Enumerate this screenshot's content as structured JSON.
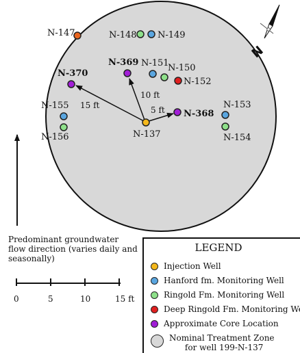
{
  "wells": [
    {
      "id": "N-147",
      "type": "deep_ringold"
    },
    {
      "id": "N-148",
      "type": "ringold"
    },
    {
      "id": "N-149",
      "type": "hanford"
    },
    {
      "id": "N-369",
      "type": "core"
    },
    {
      "id": "N-151",
      "type": "hanford"
    },
    {
      "id": "N-150",
      "type": "ringold"
    },
    {
      "id": "N-152",
      "type": "deep_ringold"
    },
    {
      "id": "N-370",
      "type": "core"
    },
    {
      "id": "N-155",
      "type": "hanford"
    },
    {
      "id": "N-156",
      "type": "ringold"
    },
    {
      "id": "N-137",
      "type": "injection"
    },
    {
      "id": "N-368",
      "type": "core"
    },
    {
      "id": "N-153",
      "type": "hanford"
    },
    {
      "id": "N-154",
      "type": "ringold"
    }
  ],
  "distances": [
    {
      "label": "15 ft",
      "to": "N-370"
    },
    {
      "label": "10 ft",
      "to": "N-369"
    },
    {
      "label": "5 ft",
      "to": "N-368"
    }
  ],
  "colors": {
    "injection": "#f4b81c",
    "hanford": "#5aa6e0",
    "ringold": "#8ee08a",
    "deep_ringold": "#e02020",
    "core": "#a11ed6",
    "zone_fill": "#d8d8d8",
    "orange_well": "#e8641e"
  },
  "flow_note": "Predominant groundwater flow direction (varies daily and seasonally)",
  "scale": {
    "ticks": [
      "0",
      "5",
      "10",
      "15 ft"
    ]
  },
  "north_label": "N",
  "legend": {
    "title": "LEGEND",
    "items": [
      {
        "label": "Injection Well",
        "type": "injection"
      },
      {
        "label": "Hanford fm. Monitoring Well",
        "type": "hanford"
      },
      {
        "label": "Ringold Fm. Monitoring Well",
        "type": "ringold"
      },
      {
        "label": "Deep Ringold Fm. Monitoring Well",
        "type": "deep_ringold"
      },
      {
        "label": "Approximate Core Location",
        "type": "core"
      },
      {
        "label": "Nominal Treatment Zone\n      for well 199-N-137",
        "type": "zone"
      }
    ]
  }
}
